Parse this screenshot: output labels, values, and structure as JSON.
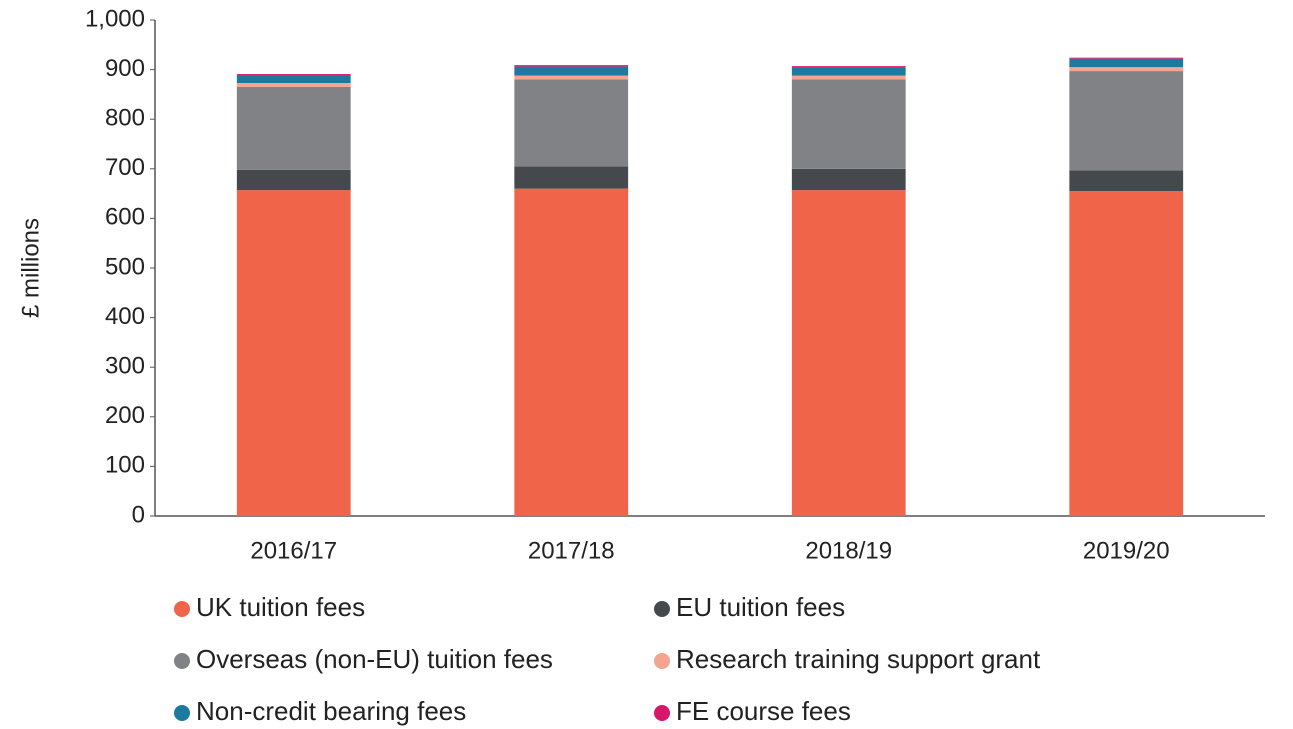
{
  "chart_data": {
    "type": "stacked_bar",
    "y_label": "£ millions",
    "categories": [
      "2016/17",
      "2017/18",
      "2018/19",
      "2019/20"
    ],
    "series": [
      {
        "name": "UK tuition fees",
        "color": "#f0644a",
        "values": [
          657,
          660,
          657,
          655
        ]
      },
      {
        "name": "EU tuition fees",
        "color": "#45494e",
        "values": [
          41,
          45,
          43,
          42
        ]
      },
      {
        "name": "Overseas (non-EU) tuition fees",
        "color": "#808285",
        "values": [
          167,
          175,
          180,
          200
        ]
      },
      {
        "name": "Research training support grant",
        "color": "#f4a48f",
        "values": [
          8,
          8,
          8,
          8
        ]
      },
      {
        "name": "Non-credit bearing fees",
        "color": "#1b7a9e",
        "values": [
          15,
          18,
          16,
          17
        ]
      },
      {
        "name": "FE course fees",
        "color": "#d6186b",
        "values": [
          3,
          3,
          3,
          2
        ]
      }
    ],
    "ylim": [
      0,
      1000
    ],
    "yticks": [
      0,
      100,
      200,
      300,
      400,
      500,
      600,
      700,
      800,
      900,
      {
        "value": 1000,
        "label": "1,000"
      }
    ],
    "legend": "bottom"
  }
}
